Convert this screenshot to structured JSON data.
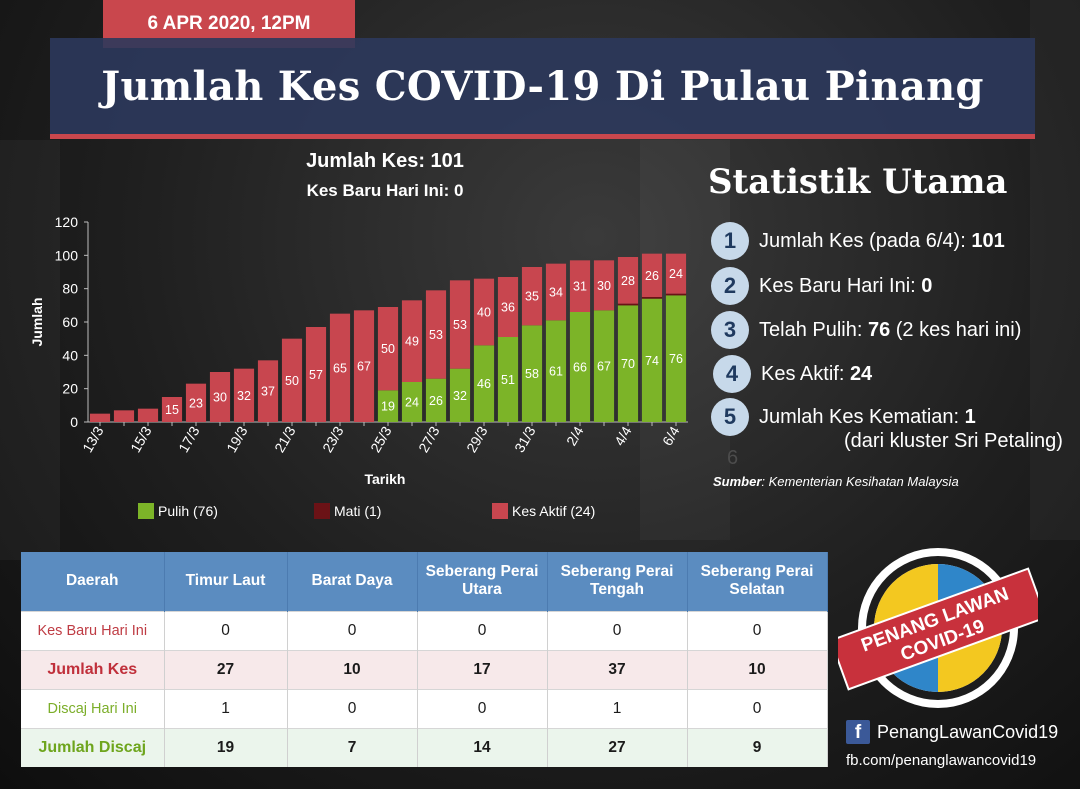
{
  "date": "6 APR 2020, 12PM",
  "title": "Jumlah Kes COVID-19 Di Pulau Pinang",
  "chart_header": {
    "line1": "Jumlah Kes: 101",
    "line2": "Kes Baru Hari Ini: 0"
  },
  "chart_data": {
    "type": "bar",
    "stacked": true,
    "xlabel": "Tarikh",
    "ylabel": "Jumlah",
    "ylim": [
      0,
      120
    ],
    "yticks": [
      0,
      20,
      40,
      60,
      80,
      100,
      120
    ],
    "grid": false,
    "legend_position": "bottom",
    "categories": [
      "13/3",
      "14/3",
      "15/3",
      "16/3",
      "17/3",
      "18/3",
      "19/3",
      "20/3",
      "21/3",
      "22/3",
      "23/3",
      "24/3",
      "25/3",
      "26/3",
      "27/3",
      "28/3",
      "29/3",
      "30/3",
      "31/3",
      "1/4",
      "2/4",
      "3/4",
      "4/4",
      "5/4",
      "6/4"
    ],
    "tick_labels": [
      "13/3",
      "",
      "15/3",
      "",
      "17/3",
      "",
      "19/3",
      "",
      "21/3",
      "",
      "23/3",
      "",
      "25/3",
      "",
      "27/3",
      "",
      "29/3",
      "",
      "31/3",
      "",
      "2/4",
      "",
      "4/4",
      "",
      "6/4"
    ],
    "series": [
      {
        "name": "Pulih (76)",
        "color": "#7cb428",
        "values": [
          0,
          0,
          0,
          0,
          0,
          0,
          0,
          0,
          0,
          0,
          0,
          0,
          19,
          24,
          26,
          32,
          46,
          51,
          58,
          61,
          66,
          67,
          70,
          74,
          76
        ],
        "labels": [
          null,
          null,
          null,
          null,
          null,
          null,
          null,
          null,
          null,
          null,
          null,
          null,
          19,
          24,
          26,
          32,
          46,
          51,
          58,
          61,
          66,
          67,
          70,
          74,
          76
        ]
      },
      {
        "name": "Mati (1)",
        "color": "#6b1216",
        "values": [
          0,
          0,
          0,
          0,
          0,
          0,
          0,
          0,
          0,
          0,
          0,
          0,
          0,
          0,
          0,
          0,
          0,
          0,
          0,
          0,
          0,
          0,
          1,
          1,
          1
        ]
      },
      {
        "name": "Kes Aktif (24)",
        "color": "#c8464f",
        "values": [
          5,
          7,
          8,
          15,
          23,
          30,
          32,
          37,
          50,
          57,
          65,
          67,
          50,
          49,
          53,
          53,
          40,
          36,
          35,
          34,
          31,
          30,
          28,
          26,
          24
        ],
        "labels": [
          null,
          null,
          null,
          15,
          23,
          30,
          32,
          37,
          50,
          57,
          65,
          67,
          50,
          49,
          53,
          53,
          40,
          36,
          35,
          34,
          31,
          30,
          28,
          26,
          24
        ]
      }
    ]
  },
  "stats": {
    "title": "Statistik Utama",
    "items": [
      {
        "num": "1",
        "label": "Jumlah Kes (pada 6/4): ",
        "value": "101"
      },
      {
        "num": "2",
        "label": "Kes Baru Hari Ini: ",
        "value": "0"
      },
      {
        "num": "3",
        "label": "Telah Pulih: ",
        "value": "76",
        "suffix": " (2 kes hari ini)"
      },
      {
        "num": "4",
        "label": "Kes Aktif: ",
        "value": "24"
      },
      {
        "num": "5",
        "label": "Jumlah Kes Kematian: ",
        "value": "1"
      }
    ],
    "item5_sub": "(dari kluster Sri Petaling)",
    "ghost_num": "6",
    "source_label": "Sumber",
    "source_text": ": Kementerian Kesihatan Malaysia"
  },
  "table": {
    "headers": [
      "Daerah",
      "Timur Laut",
      "Barat Daya",
      "Seberang Perai Utara",
      "Seberang Perai Tengah",
      "Seberang Perai Selatan"
    ],
    "rows": [
      {
        "label": "Kes Baru Hari Ini",
        "values": [
          "0",
          "0",
          "0",
          "0",
          "0"
        ]
      },
      {
        "label": "Jumlah Kes",
        "values": [
          "27",
          "10",
          "17",
          "37",
          "10"
        ]
      },
      {
        "label": "Discaj Hari Ini",
        "values": [
          "1",
          "0",
          "0",
          "1",
          "0"
        ]
      },
      {
        "label": "Jumlah Discaj",
        "values": [
          "19",
          "7",
          "14",
          "27",
          "9"
        ]
      }
    ]
  },
  "logo": {
    "line1": "PENANG LAWAN",
    "line2": "COVID-19"
  },
  "facebook": {
    "icon": "f",
    "name": "PenangLawanCovid19",
    "url": "fb.com/penanglawancovid19"
  }
}
